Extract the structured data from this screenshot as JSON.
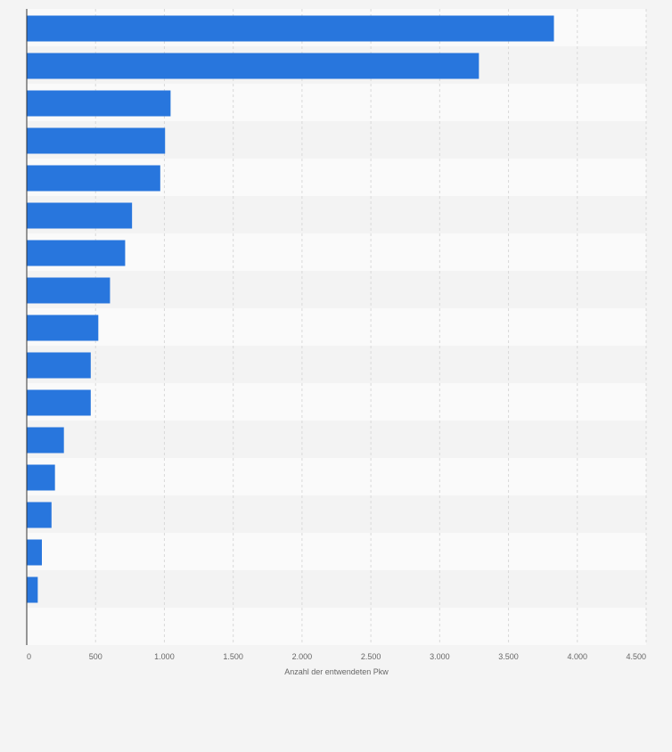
{
  "chart_data": {
    "type": "bar",
    "orientation": "horizontal",
    "title": "",
    "xlabel": "Anzahl der entwendeten Pkw",
    "ylabel": "",
    "xlim": [
      0,
      4500
    ],
    "x_ticks": [
      0,
      500,
      1000,
      1500,
      2000,
      2500,
      3000,
      3500,
      4000,
      4500
    ],
    "x_tick_labels": [
      "0",
      "500",
      "1.000",
      "1.500",
      "2.000",
      "2.500",
      "3.000",
      "3.500",
      "4.000",
      "4.500"
    ],
    "grid": true,
    "categories": [
      "",
      "",
      "",
      "",
      "",
      "",
      "",
      "",
      "",
      "",
      "",
      "",
      "",
      "",
      "",
      ""
    ],
    "values": [
      3830,
      3285,
      1045,
      1005,
      970,
      765,
      715,
      605,
      520,
      465,
      465,
      270,
      205,
      180,
      110,
      80
    ],
    "colors": {
      "bar": "#2876dd",
      "background": "#f4f4f4",
      "band_light": "#fafafa",
      "band_dark": "#f3f3f3",
      "grid": "#d9d9d9",
      "axis": "#333333",
      "text": "#666666"
    }
  }
}
